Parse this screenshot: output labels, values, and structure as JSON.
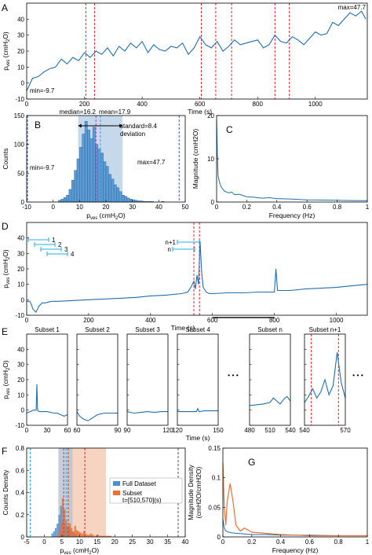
{
  "colors": {
    "signal": "#1f6fb2",
    "marker": "#e8262a",
    "ann_blue": "#2f5fc4",
    "ann_purple": "#9b3fb8",
    "ann_cyan": "#27aee0",
    "subset_orange": "#e8703a",
    "highlight": "#b7d0e6",
    "dashed_gray": "#555555"
  },
  "panels": {
    "A": "A",
    "B": "B",
    "C": "C",
    "D": "D",
    "E": "E",
    "F": "F",
    "G": "G"
  },
  "chart_data": [
    {
      "id": "A",
      "type": "line",
      "xlabel": "Time (s)",
      "ylabel": "p_ves (cmH2O)",
      "xlim": [
        0,
        1180
      ],
      "ylim": [
        -10,
        50
      ],
      "xticks": [
        "0",
        "200",
        "400",
        "600",
        "800",
        "1000"
      ],
      "xtick_values": [
        0,
        200,
        400,
        600,
        800,
        1000
      ],
      "yticks": [
        "-10",
        "0",
        "10",
        "20",
        "30",
        "40"
      ],
      "ytick_values": [
        -10,
        0,
        10,
        20,
        30,
        40
      ],
      "x": [
        0,
        20,
        40,
        60,
        80,
        100,
        120,
        140,
        160,
        180,
        200,
        220,
        240,
        260,
        280,
        300,
        320,
        340,
        360,
        380,
        400,
        420,
        440,
        460,
        480,
        500,
        520,
        540,
        560,
        580,
        600,
        620,
        640,
        660,
        680,
        700,
        720,
        740,
        760,
        780,
        800,
        820,
        840,
        860,
        880,
        900,
        920,
        940,
        960,
        980,
        1000,
        1020,
        1040,
        1060,
        1080,
        1100,
        1120,
        1140,
        1160,
        1175
      ],
      "y": [
        -5,
        3,
        4,
        7,
        9,
        10,
        15,
        12,
        16,
        14,
        19,
        16,
        20,
        18,
        22,
        17,
        23,
        20,
        25,
        22,
        26,
        19,
        24,
        21,
        20,
        23,
        22,
        25,
        18,
        22,
        29,
        24,
        22,
        26,
        20,
        23,
        27,
        24,
        25,
        26,
        27,
        22,
        24,
        30,
        26,
        25,
        29,
        27,
        24,
        28,
        32,
        30,
        31,
        38,
        36,
        40,
        44,
        42,
        45,
        40
      ],
      "annotations": {
        "min": "min=-9.7",
        "max": "max=47.7"
      },
      "red_lines_x": [
        205,
        235,
        605,
        655,
        710,
        860,
        910
      ]
    },
    {
      "id": "B",
      "type": "bar",
      "xlabel": "p_ves (cmH2O)",
      "ylabel": "Counts",
      "xlim": [
        -10,
        50
      ],
      "ylim": [
        0,
        150
      ],
      "xticks": [
        "-10",
        "0",
        "10",
        "20",
        "30",
        "40",
        "50"
      ],
      "xtick_values": [
        -10,
        0,
        10,
        20,
        30,
        40,
        50
      ],
      "yticks": [
        "0",
        "50",
        "100",
        "150"
      ],
      "ytick_values": [
        0,
        50,
        100,
        150
      ],
      "bin_start": 2,
      "bin_width": 1,
      "values": [
        3,
        5,
        8,
        12,
        22,
        38,
        55,
        75,
        95,
        118,
        140,
        125,
        110,
        130,
        100,
        92,
        85,
        70,
        62,
        48,
        40,
        30,
        25,
        18,
        12,
        10,
        7,
        5,
        4,
        3,
        2,
        2,
        1,
        1,
        1,
        1,
        0,
        0,
        0,
        1
      ],
      "stats": {
        "median": "median=16.2",
        "mean": "mean=17.9",
        "std_line1": "standard=8.4",
        "std_line2": "deviation",
        "min": "min=-9.7",
        "max": "max=47.7"
      },
      "median_x": 16.2,
      "mean_x": 17.9,
      "min_x": -9.7,
      "max_x": 47.7,
      "std_band": [
        9.5,
        26.3
      ]
    },
    {
      "id": "C",
      "type": "line",
      "xlabel": "Frequency (Hz)",
      "ylabel": "Magnitude (cmH2O)",
      "xlim": [
        0,
        1
      ],
      "ylim": [
        0,
        20
      ],
      "xticks": [
        "0",
        "0.2",
        "0.4",
        "0.6",
        "0.8",
        "1"
      ],
      "xtick_values": [
        0,
        0.2,
        0.4,
        0.6,
        0.8,
        1
      ],
      "yticks": [
        "0",
        "10",
        "20"
      ],
      "ytick_values": [
        0,
        10,
        20
      ],
      "x": [
        0,
        0.005,
        0.01,
        0.02,
        0.03,
        0.04,
        0.05,
        0.06,
        0.08,
        0.1,
        0.12,
        0.15,
        0.2,
        0.25,
        0.3,
        0.35,
        0.4,
        0.5,
        0.6,
        0.7,
        0.8,
        0.9,
        1.0
      ],
      "y": [
        19,
        11,
        6,
        4.5,
        3.5,
        3,
        2.6,
        2.4,
        2.1,
        2.3,
        1.7,
        1.8,
        1.2,
        1.1,
        0.9,
        1,
        0.8,
        0.7,
        0.5,
        0.45,
        0.4,
        0.35,
        0.3
      ]
    },
    {
      "id": "D",
      "type": "line",
      "xlabel": "Time (s)",
      "ylabel": "p_ves (cmH2O)",
      "xlim": [
        0,
        1100
      ],
      "ylim": [
        -10,
        50
      ],
      "xticks": [
        "0",
        "200",
        "400",
        "600",
        "800",
        "1000"
      ],
      "xtick_values": [
        0,
        200,
        400,
        600,
        800,
        1000
      ],
      "yticks": [
        "-10",
        "0",
        "10",
        "20",
        "30",
        "40"
      ],
      "ytick_values": [
        -10,
        0,
        10,
        20,
        30,
        40
      ],
      "x": [
        0,
        10,
        15,
        20,
        30,
        40,
        50,
        60,
        80,
        100,
        150,
        200,
        250,
        300,
        350,
        400,
        450,
        500,
        520,
        530,
        540,
        545,
        550,
        555,
        560,
        565,
        570,
        580,
        590,
        600,
        650,
        700,
        750,
        800,
        805,
        810,
        850,
        900,
        950,
        1000,
        1050,
        1100
      ],
      "y": [
        -1,
        -1,
        -3,
        -6,
        -8,
        -4,
        -2,
        -2,
        -1,
        -1,
        -0.5,
        0,
        0.5,
        1,
        1.5,
        2.5,
        3,
        4,
        5,
        8,
        12,
        7,
        16,
        10,
        38,
        18,
        8,
        5,
        4,
        4,
        4.5,
        4.5,
        5,
        5,
        20,
        6,
        6,
        7,
        7.5,
        8,
        9,
        10
      ],
      "red_lines_x": [
        540,
        558
      ],
      "bar_segment": [
        600,
        800
      ],
      "window_labels": [
        "1",
        "2",
        "3",
        "4",
        "n",
        "n+1"
      ]
    },
    {
      "id": "E",
      "type": "line",
      "xlabel": "Time (s)",
      "ylabel": "p_ves (cmH2O)",
      "ylim": [
        -10,
        50
      ],
      "yticks": [
        "-10",
        "0",
        "10",
        "20",
        "30",
        "40"
      ],
      "ytick_values": [
        -10,
        0,
        10,
        20,
        30,
        40
      ],
      "subsets": [
        {
          "title": "Subset 1",
          "ticks": [
            "0",
            "30",
            "60"
          ],
          "x": [
            0,
            5,
            10,
            14,
            15,
            16,
            18,
            20,
            30,
            40,
            45,
            50,
            55,
            60
          ],
          "y": [
            -2,
            -1,
            0,
            0,
            17,
            0,
            -1,
            -1,
            -1,
            -2,
            -2,
            -3,
            -4,
            -3
          ]
        },
        {
          "title": "Subset 2",
          "ticks": [
            "60",
            "90"
          ],
          "x": [
            60,
            62,
            65,
            68,
            70,
            75,
            80,
            90
          ],
          "y": [
            -1,
            -4,
            -6,
            -7,
            -6,
            -3,
            -2,
            -2
          ]
        },
        {
          "title": "Subset 3",
          "ticks": [
            "90",
            "120"
          ],
          "x": [
            90,
            95,
            100,
            105,
            110,
            115,
            120
          ],
          "y": [
            -1,
            -2,
            -1.5,
            -1,
            -1.5,
            -1,
            -1
          ]
        },
        {
          "title": "Subset 4",
          "ticks": [
            "120",
            "150"
          ],
          "x": [
            120,
            125,
            130,
            134,
            135,
            136,
            140,
            145,
            150
          ],
          "y": [
            -1,
            -1,
            -1,
            -1,
            1,
            -1,
            -0.5,
            -0.5,
            -0.5
          ]
        },
        {
          "title": "Subset n",
          "ticks": [
            "480",
            "510",
            "540"
          ],
          "x": [
            480,
            490,
            500,
            510,
            515,
            520,
            525,
            530,
            535,
            540
          ],
          "y": [
            3,
            3.5,
            4,
            5,
            8,
            6,
            4,
            7,
            9,
            6
          ]
        },
        {
          "title": "Subset n+1",
          "ticks": [
            "540",
            "570"
          ],
          "x": [
            540,
            543,
            546,
            549,
            552,
            555,
            558,
            561,
            564,
            567,
            570
          ],
          "y": [
            5,
            9,
            14,
            8,
            12,
            20,
            10,
            16,
            38,
            18,
            8
          ],
          "red_lines_x": [
            545,
            565
          ]
        }
      ],
      "ellipsis": "• • •"
    },
    {
      "id": "F",
      "type": "bar",
      "xlabel": "p_ves (cmH2O)",
      "ylabel": "Counts Density",
      "xlim": [
        -5,
        40
      ],
      "ylim": [
        0,
        0.8
      ],
      "xticks": [
        "-5",
        "0",
        "5",
        "10",
        "15",
        "20",
        "25",
        "30",
        "35",
        "40"
      ],
      "xtick_values": [
        -5,
        0,
        5,
        10,
        15,
        20,
        25,
        30,
        35,
        40
      ],
      "yticks": [
        "0",
        "0.2",
        "0.4",
        "0.6",
        "0.8"
      ],
      "ytick_values": [
        0,
        0.2,
        0.4,
        0.6,
        0.8
      ],
      "legend": [
        "Full Dataset",
        "Subset",
        "t=[510,570](s)"
      ],
      "series": [
        {
          "name": "Full Dataset",
          "bin_start": 2,
          "bin_width": 0.5,
          "values": [
            0.03,
            0.05,
            0.08,
            0.12,
            0.2,
            0.28,
            0.15,
            0.12,
            0.1,
            0.08,
            0.07,
            0.05,
            0.04,
            0.03,
            0.02
          ]
        },
        {
          "name": "Subset",
          "bin_start": 4,
          "bin_width": 0.5,
          "values": [
            0.05,
            0.12,
            0.35,
            0.25,
            0.15,
            0.1,
            0.12,
            0.08,
            0.05,
            0.1,
            0.06,
            0.05,
            0.04,
            0.03,
            0.05,
            0.03,
            0.02,
            0.02,
            0.03,
            0.02,
            0.01,
            0.01,
            0.02,
            0.01,
            0.01,
            0.01,
            0.01,
            0.01,
            0.01,
            0.01
          ]
        }
      ],
      "full_band": [
        4,
        8
      ],
      "subset_band": [
        6.5,
        17.5
      ],
      "dashed_x": {
        "min_full": -4,
        "max_full": 38,
        "median_full": 5.5,
        "mean_full": 6.2,
        "median_sub": 6.8,
        "mean_sub": 11.5
      }
    },
    {
      "id": "G",
      "type": "line",
      "xlabel": "Frequency (Hz)",
      "ylabel": "Magnitude Density (cmH2O/cmH2O)",
      "xlim": [
        0,
        1
      ],
      "ylim": [
        0,
        0.15
      ],
      "xticks": [
        "0",
        "0.2",
        "0.4",
        "0.6",
        "0.8",
        "1"
      ],
      "xtick_values": [
        0,
        0.2,
        0.4,
        0.6,
        0.8,
        1
      ],
      "yticks": [
        "0",
        "0.05",
        "0.1",
        "0.15"
      ],
      "ytick_values": [
        0,
        0.05,
        0.1,
        0.15
      ],
      "series": [
        {
          "name": "Full Dataset",
          "x": [
            0,
            0.01,
            0.02,
            0.04,
            0.06,
            0.1,
            0.15,
            0.2,
            0.3,
            0.4,
            0.5,
            0.6,
            0.8,
            1.0
          ],
          "y": [
            0.03,
            0.015,
            0.01,
            0.008,
            0.007,
            0.006,
            0.005,
            0.004,
            0.004,
            0.003,
            0.003,
            0.003,
            0.002,
            0.002
          ]
        },
        {
          "name": "Subset",
          "x": [
            0,
            0.01,
            0.02,
            0.03,
            0.05,
            0.07,
            0.09,
            0.12,
            0.15,
            0.2,
            0.3,
            0.4,
            0.5,
            0.6,
            0.8,
            1.0
          ],
          "y": [
            0.125,
            0.05,
            0.02,
            0.06,
            0.09,
            0.06,
            0.02,
            0.01,
            0.015,
            0.008,
            0.006,
            0.004,
            0.003,
            0.002,
            0.002,
            0.002
          ]
        }
      ]
    }
  ]
}
